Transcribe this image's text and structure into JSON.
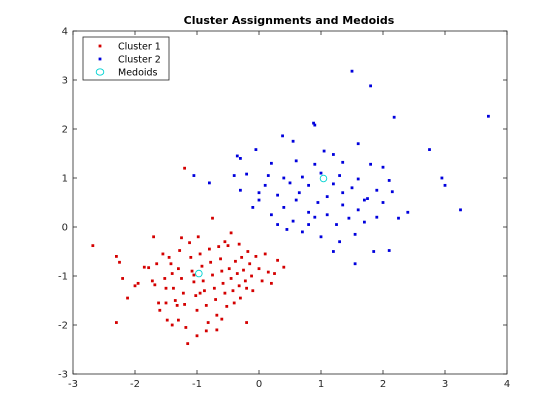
{
  "chart_data": {
    "type": "scatter",
    "title": "Cluster Assignments and Medoids",
    "xlabel": "",
    "ylabel": "",
    "xlim": [
      -3,
      4
    ],
    "ylim": [
      -3,
      4
    ],
    "xticks": [
      -3,
      -2,
      -1,
      0,
      1,
      2,
      3,
      4
    ],
    "yticks": [
      -3,
      -2,
      -1,
      0,
      1,
      2,
      3,
      4
    ],
    "grid": false,
    "legend_position": "top-left",
    "series": [
      {
        "name": "Cluster 1",
        "color": "#d40000",
        "marker": "point",
        "points": [
          [
            -2.68,
            -0.38
          ],
          [
            -2.3,
            -0.6
          ],
          [
            -2.25,
            -0.72
          ],
          [
            -2.2,
            -1.05
          ],
          [
            -2.12,
            -1.45
          ],
          [
            -2.0,
            -1.2
          ],
          [
            -1.95,
            -1.15
          ],
          [
            -2.3,
            -1.95
          ],
          [
            -1.85,
            -0.82
          ],
          [
            -1.78,
            -0.83
          ],
          [
            -1.72,
            -1.1
          ],
          [
            -1.68,
            -1.18
          ],
          [
            -1.62,
            -1.55
          ],
          [
            -1.6,
            -1.7
          ],
          [
            -1.55,
            -0.55
          ],
          [
            -1.52,
            -1.05
          ],
          [
            -1.5,
            -1.55
          ],
          [
            -1.48,
            -1.9
          ],
          [
            -1.45,
            -0.62
          ],
          [
            -1.42,
            -0.75
          ],
          [
            -1.4,
            -0.95
          ],
          [
            -1.38,
            -1.25
          ],
          [
            -1.35,
            -1.5
          ],
          [
            -1.32,
            -1.6
          ],
          [
            -1.3,
            -0.85
          ],
          [
            -1.28,
            -0.48
          ],
          [
            -1.25,
            -1.05
          ],
          [
            -1.22,
            -1.35
          ],
          [
            -1.2,
            -1.58
          ],
          [
            -1.18,
            -2.05
          ],
          [
            -1.15,
            -2.38
          ],
          [
            -1.12,
            -0.32
          ],
          [
            -1.1,
            -0.62
          ],
          [
            -1.08,
            -0.9
          ],
          [
            -1.05,
            -1.12
          ],
          [
            -1.02,
            -1.4
          ],
          [
            -1.0,
            -1.7
          ],
          [
            -0.98,
            -0.2
          ],
          [
            -0.95,
            -0.55
          ],
          [
            -0.92,
            -0.8
          ],
          [
            -0.9,
            -1.1
          ],
          [
            -0.88,
            -1.3
          ],
          [
            -0.85,
            -1.6
          ],
          [
            -0.82,
            -1.95
          ],
          [
            -0.8,
            -0.45
          ],
          [
            -0.78,
            -0.72
          ],
          [
            -0.75,
            -0.98
          ],
          [
            -0.72,
            -1.25
          ],
          [
            -0.7,
            -1.48
          ],
          [
            -0.68,
            -1.8
          ],
          [
            -0.65,
            -0.4
          ],
          [
            -0.62,
            -0.65
          ],
          [
            -0.6,
            -0.9
          ],
          [
            -0.58,
            -1.15
          ],
          [
            -0.55,
            -1.35
          ],
          [
            -0.52,
            -1.62
          ],
          [
            -0.5,
            -0.38
          ],
          [
            -0.48,
            -0.85
          ],
          [
            -0.45,
            -1.05
          ],
          [
            -0.42,
            -1.3
          ],
          [
            -0.4,
            -1.55
          ],
          [
            -0.38,
            -0.7
          ],
          [
            -0.35,
            -0.95
          ],
          [
            -0.32,
            -1.2
          ],
          [
            -0.3,
            -1.45
          ],
          [
            -0.28,
            -0.62
          ],
          [
            -0.25,
            -0.88
          ],
          [
            -0.22,
            -1.1
          ],
          [
            -0.2,
            -1.25
          ],
          [
            -0.18,
            -0.5
          ],
          [
            -0.15,
            -0.75
          ],
          [
            -0.12,
            -1.0
          ],
          [
            -0.1,
            -1.3
          ],
          [
            -0.05,
            -0.6
          ],
          [
            0.0,
            -0.85
          ],
          [
            0.05,
            -1.1
          ],
          [
            0.1,
            -0.55
          ],
          [
            0.15,
            -0.92
          ],
          [
            0.2,
            -1.15
          ],
          [
            0.25,
            -0.95
          ],
          [
            0.3,
            -0.68
          ],
          [
            -1.5,
            -1.25
          ],
          [
            -1.4,
            -2.0
          ],
          [
            -1.05,
            -0.98
          ],
          [
            -0.95,
            -1.35
          ],
          [
            -1.25,
            -0.22
          ],
          [
            -0.45,
            -0.12
          ],
          [
            -0.6,
            -1.88
          ],
          [
            -1.7,
            -0.2
          ],
          [
            -0.2,
            -1.95
          ],
          [
            -1.0,
            -2.22
          ],
          [
            -0.85,
            -2.12
          ],
          [
            0.4,
            -0.82
          ],
          [
            -0.32,
            -0.35
          ],
          [
            -1.65,
            -0.75
          ],
          [
            -0.75,
            0.18
          ],
          [
            -1.2,
            1.2
          ],
          [
            -0.55,
            -0.3
          ],
          [
            -1.3,
            -1.9
          ],
          [
            -0.68,
            -2.1
          ]
        ]
      },
      {
        "name": "Cluster 2",
        "color": "#0000dd",
        "marker": "point",
        "points": [
          [
            1.5,
            3.18
          ],
          [
            1.8,
            2.88
          ],
          [
            3.7,
            2.26
          ],
          [
            2.18,
            2.24
          ],
          [
            0.9,
            2.08
          ],
          [
            0.88,
            2.12
          ],
          [
            0.38,
            1.86
          ],
          [
            0.55,
            1.75
          ],
          [
            1.6,
            1.7
          ],
          [
            2.75,
            1.58
          ],
          [
            -0.05,
            1.58
          ],
          [
            1.05,
            1.55
          ],
          [
            1.2,
            1.48
          ],
          [
            -0.35,
            1.45
          ],
          [
            -0.3,
            1.4
          ],
          [
            0.6,
            1.35
          ],
          [
            0.9,
            1.28
          ],
          [
            1.35,
            1.32
          ],
          [
            1.8,
            1.28
          ],
          [
            2.0,
            1.22
          ],
          [
            0.2,
            1.3
          ],
          [
            -0.4,
            1.05
          ],
          [
            -0.2,
            1.08
          ],
          [
            0.4,
            1.0
          ],
          [
            0.7,
            1.02
          ],
          [
            1.0,
            1.1
          ],
          [
            1.3,
            1.05
          ],
          [
            1.6,
            0.98
          ],
          [
            2.1,
            0.95
          ],
          [
            2.95,
            1.0
          ],
          [
            3.0,
            0.85
          ],
          [
            -1.05,
            1.05
          ],
          [
            -0.8,
            0.9
          ],
          [
            0.1,
            0.85
          ],
          [
            0.5,
            0.9
          ],
          [
            0.8,
            0.85
          ],
          [
            1.2,
            0.88
          ],
          [
            1.5,
            0.8
          ],
          [
            1.9,
            0.75
          ],
          [
            -0.3,
            0.75
          ],
          [
            0.0,
            0.7
          ],
          [
            0.3,
            0.65
          ],
          [
            0.6,
            0.55
          ],
          [
            0.95,
            0.5
          ],
          [
            1.35,
            0.45
          ],
          [
            1.75,
            0.58
          ],
          [
            2.15,
            0.72
          ],
          [
            0.0,
            0.55
          ],
          [
            0.4,
            0.4
          ],
          [
            0.8,
            0.3
          ],
          [
            1.1,
            0.25
          ],
          [
            1.45,
            0.18
          ],
          [
            1.7,
            0.1
          ],
          [
            0.3,
            0.05
          ],
          [
            0.55,
            0.12
          ],
          [
            0.9,
            0.2
          ],
          [
            1.25,
            0.05
          ],
          [
            2.4,
            0.3
          ],
          [
            2.25,
            0.18
          ],
          [
            3.25,
            0.35
          ],
          [
            0.7,
            -0.1
          ],
          [
            1.0,
            -0.2
          ],
          [
            1.3,
            -0.3
          ],
          [
            1.55,
            -0.15
          ],
          [
            0.2,
            0.25
          ],
          [
            -0.1,
            0.4
          ],
          [
            1.55,
            -0.75
          ],
          [
            1.85,
            -0.5
          ],
          [
            2.1,
            -0.48
          ],
          [
            1.2,
            -0.5
          ],
          [
            0.8,
            0.05
          ],
          [
            1.1,
            0.62
          ],
          [
            0.65,
            0.7
          ],
          [
            1.6,
            0.35
          ],
          [
            0.45,
            -0.05
          ],
          [
            1.9,
            0.2
          ],
          [
            2.0,
            0.5
          ],
          [
            1.35,
            0.7
          ],
          [
            0.15,
            1.05
          ],
          [
            1.7,
            0.55
          ]
        ]
      },
      {
        "name": "Medoids",
        "color": "#00d2d2",
        "marker": "circle",
        "points": [
          [
            -0.97,
            -0.95
          ],
          [
            1.04,
            0.99
          ]
        ]
      }
    ]
  }
}
